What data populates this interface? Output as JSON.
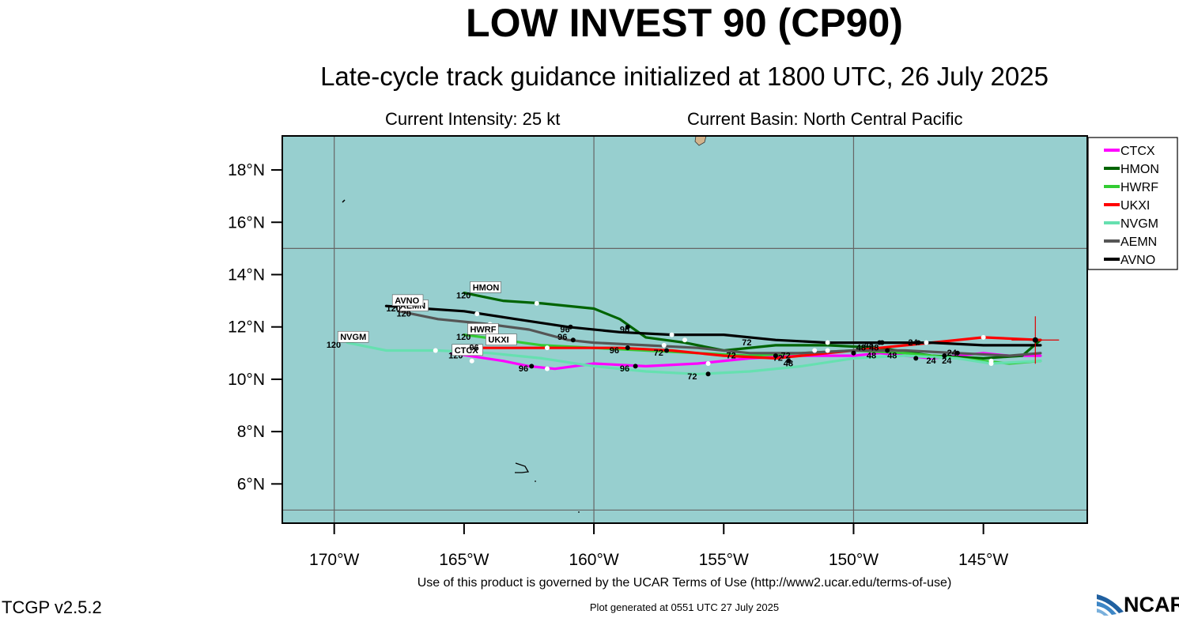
{
  "header": {
    "title": "LOW INVEST 90 (CP90)",
    "subtitle": "Late-cycle track guidance initialized at 1800 UTC, 26 July 2025",
    "intensity": "Current Intensity: 25 kt",
    "basin": "Current Basin: North Central Pacific"
  },
  "footer": {
    "terms": "Use of this product is governed by the UCAR Terms of Use (http://www2.ucar.edu/terms-of-use)",
    "generated": "Plot generated at 0551 UTC   27 July 2025",
    "version": "TCGP v2.5.2",
    "logo": "NCAR"
  },
  "chart_data": {
    "type": "line",
    "xlim": [
      -172,
      -141
    ],
    "ylim": [
      4.5,
      19.3
    ],
    "grid_lon": [
      -170,
      -160,
      -150
    ],
    "grid_lat": [
      15,
      5
    ],
    "x_ticks": [
      -170,
      -165,
      -160,
      -155,
      -150,
      -145
    ],
    "x_tick_labels": [
      "170°W",
      "165°W",
      "160°W",
      "155°W",
      "150°W",
      "145°W"
    ],
    "y_ticks": [
      6,
      8,
      10,
      12,
      14,
      16,
      18
    ],
    "y_tick_labels": [
      "6°N",
      "8°N",
      "10°N",
      "12°N",
      "14°N",
      "16°N",
      "18°N"
    ],
    "legend_position": "right",
    "current_position": [
      -143,
      11.5
    ],
    "series": [
      {
        "name": "CTCX",
        "color": "#ff00ff",
        "track": [
          [
            -142.8,
            10.9
          ],
          [
            -144,
            10.9
          ],
          [
            -145,
            11
          ],
          [
            -146,
            10.9
          ],
          [
            -147,
            10.8
          ],
          [
            -148,
            10.9
          ],
          [
            -149,
            11
          ],
          [
            -150,
            10.9
          ],
          [
            -152,
            10.9
          ],
          [
            -154,
            10.8
          ],
          [
            -156,
            10.6
          ],
          [
            -158,
            10.5
          ],
          [
            -160,
            10.6
          ],
          [
            -161.5,
            10.4
          ],
          [
            -162.5,
            10.5
          ],
          [
            -163.5,
            10.7
          ],
          [
            -165.5,
            11
          ]
        ],
        "white_dots": [
          [
            -144.7,
            10.7
          ],
          [
            -155.6,
            10.6
          ],
          [
            -161.8,
            10.4
          ],
          [
            -164.7,
            10.7
          ]
        ],
        "black_dots": [
          [
            -147.6,
            10.8
          ],
          [
            -153,
            10.9
          ],
          [
            -158.4,
            10.5
          ],
          [
            -162.4,
            10.5
          ]
        ],
        "labels": [
          {
            "text": "96",
            "lon": -162.9,
            "lat": 10.3
          }
        ],
        "end_label": {
          "text": "CTCX",
          "lon": -165.4,
          "lat": 11
        },
        "end_hour": {
          "text": "120",
          "lon": -165.6,
          "lat": 10.8
        }
      },
      {
        "name": "HMON",
        "color": "#006400",
        "track": [
          [
            -142.8,
            11.5
          ],
          [
            -143.5,
            10.9
          ],
          [
            -145,
            10.8
          ],
          [
            -147,
            10.9
          ],
          [
            -149,
            11.2
          ],
          [
            -151,
            11.3
          ],
          [
            -153,
            11.3
          ],
          [
            -155,
            11.1
          ],
          [
            -156.5,
            11.4
          ],
          [
            -158,
            11.6
          ],
          [
            -159,
            12.3
          ],
          [
            -160,
            12.7
          ],
          [
            -162,
            12.9
          ],
          [
            -163.5,
            13
          ],
          [
            -165,
            13.3
          ]
        ],
        "white_dots": [
          [
            -162.2,
            12.9
          ],
          [
            -156.5,
            11.5
          ]
        ],
        "black_dots": [
          [
            -149,
            11.4
          ],
          [
            -146,
            11
          ]
        ],
        "labels": [],
        "end_label": {
          "text": "HMON",
          "lon": -164.7,
          "lat": 13.4
        },
        "end_hour": {
          "text": "120",
          "lon": -165.3,
          "lat": 13.1
        }
      },
      {
        "name": "HWRF",
        "color": "#33cc33",
        "track": [
          [
            -142.8,
            10.7
          ],
          [
            -144,
            10.6
          ],
          [
            -146,
            10.8
          ],
          [
            -148,
            11
          ],
          [
            -150,
            11.1
          ],
          [
            -152,
            11
          ],
          [
            -154,
            10.9
          ],
          [
            -156,
            11
          ],
          [
            -158,
            11.1
          ],
          [
            -160,
            11.2
          ],
          [
            -162,
            11.3
          ],
          [
            -163.5,
            11.5
          ],
          [
            -165,
            11.7
          ]
        ],
        "white_dots": [
          [
            -161.8,
            11.2
          ],
          [
            -151.5,
            11.1
          ]
        ],
        "black_dots": [
          [
            -146.5,
            10.9
          ]
        ],
        "labels": [
          {
            "text": "96",
            "lon": -161.4,
            "lat": 11.5
          }
        ],
        "end_label": {
          "text": "HWRF",
          "lon": -164.8,
          "lat": 11.8
        },
        "end_hour": {
          "text": "120",
          "lon": -165.3,
          "lat": 11.5
        }
      },
      {
        "name": "UKXI",
        "color": "#ff0000",
        "track": [
          [
            -142.8,
            11.5
          ],
          [
            -145,
            11.6
          ],
          [
            -147,
            11.4
          ],
          [
            -149,
            11.2
          ],
          [
            -151,
            11
          ],
          [
            -153,
            10.8
          ],
          [
            -155,
            10.9
          ],
          [
            -157,
            11.1
          ],
          [
            -159,
            11.2
          ],
          [
            -161,
            11.2
          ],
          [
            -163,
            11.2
          ],
          [
            -164.5,
            11.2
          ]
        ],
        "white_dots": [
          [
            -147.2,
            11.4
          ],
          [
            -145,
            11.6
          ]
        ],
        "black_dots": [
          [
            -147.5,
            11.4
          ],
          [
            -152.5,
            10.7
          ],
          [
            -157.2,
            11.1
          ],
          [
            -158.7,
            11.2
          ]
        ],
        "labels": [
          {
            "text": "96",
            "lon": -159.4,
            "lat": 11
          },
          {
            "text": "72",
            "lon": -157.7,
            "lat": 10.9
          },
          {
            "text": "24",
            "lon": -147.9,
            "lat": 11.3
          }
        ],
        "end_label": {
          "text": "UKXI",
          "lon": -164.1,
          "lat": 11.4
        },
        "end_hour": {
          "text": "96",
          "lon": -164.8,
          "lat": 11.1
        }
      },
      {
        "name": "NVGM",
        "color": "#66e0b0",
        "track": [
          [
            -142.8,
            10.7
          ],
          [
            -144.7,
            10.6
          ],
          [
            -146,
            10.8
          ],
          [
            -148,
            10.9
          ],
          [
            -150,
            10.8
          ],
          [
            -152,
            10.5
          ],
          [
            -154,
            10.3
          ],
          [
            -156,
            10.2
          ],
          [
            -158,
            10.3
          ],
          [
            -160,
            10.5
          ],
          [
            -162,
            10.8
          ],
          [
            -164,
            11
          ],
          [
            -166,
            11.1
          ],
          [
            -168,
            11.1
          ],
          [
            -169.5,
            11.4
          ]
        ],
        "white_dots": [
          [
            -166.1,
            11.1
          ],
          [
            -144.7,
            10.6
          ]
        ],
        "black_dots": [
          [
            -155.6,
            10.2
          ]
        ],
        "labels": [
          {
            "text": "72",
            "lon": -156.4,
            "lat": 10
          },
          {
            "text": "96",
            "lon": -159,
            "lat": 10.3
          },
          {
            "text": "48",
            "lon": -149.5,
            "lat": 10.8
          }
        ],
        "end_label": {
          "text": "NVGM",
          "lon": -169.8,
          "lat": 11.5
        },
        "end_hour": {
          "text": "120",
          "lon": -170.3,
          "lat": 11.2
        }
      },
      {
        "name": "AEMN",
        "color": "#555555",
        "track": [
          [
            -142.8,
            11
          ],
          [
            -144,
            10.9
          ],
          [
            -146,
            11
          ],
          [
            -148,
            11.1
          ],
          [
            -150,
            11.1
          ],
          [
            -152,
            11
          ],
          [
            -154,
            11
          ],
          [
            -156,
            11.2
          ],
          [
            -158,
            11.3
          ],
          [
            -160,
            11.4
          ],
          [
            -161,
            11.5
          ],
          [
            -162.5,
            11.9
          ],
          [
            -164,
            12.1
          ],
          [
            -166,
            12.3
          ],
          [
            -167.5,
            12.6
          ]
        ],
        "white_dots": [
          [
            -164,
            12.1
          ],
          [
            -157.3,
            11.3
          ],
          [
            -151,
            11.1
          ]
        ],
        "black_dots": [
          [
            -148.7,
            11.1
          ],
          [
            -150,
            11
          ],
          [
            -160.8,
            11.5
          ]
        ],
        "labels": [
          {
            "text": "48",
            "lon": -149.9,
            "lat": 11.1
          }
        ],
        "end_label": {
          "text": "AEMN",
          "lon": -167.5,
          "lat": 12.7
        },
        "end_hour": {
          "text": "120",
          "lon": -167.6,
          "lat": 12.4
        }
      },
      {
        "name": "AVNO",
        "color": "#000000",
        "track": [
          [
            -142.8,
            11.3
          ],
          [
            -145,
            11.3
          ],
          [
            -147,
            11.4
          ],
          [
            -149,
            11.4
          ],
          [
            -151,
            11.4
          ],
          [
            -153,
            11.5
          ],
          [
            -155,
            11.7
          ],
          [
            -157,
            11.7
          ],
          [
            -159,
            11.8
          ],
          [
            -161,
            12
          ],
          [
            -163,
            12.3
          ],
          [
            -165,
            12.6
          ],
          [
            -168,
            12.8
          ]
        ],
        "white_dots": [
          [
            -164.5,
            12.5
          ],
          [
            -157,
            11.7
          ],
          [
            -151,
            11.4
          ]
        ],
        "black_dots": [
          [
            -160.9,
            12
          ],
          [
            -158.7,
            12
          ],
          [
            -148.9,
            11.4
          ]
        ],
        "labels": [
          {
            "text": "96",
            "lon": -161.3,
            "lat": 11.8
          },
          {
            "text": "96",
            "lon": -159,
            "lat": 11.8
          }
        ],
        "end_label": {
          "text": "AVNO",
          "lon": -167.7,
          "lat": 12.9
        },
        "end_hour": {
          "text": "120",
          "lon": -168,
          "lat": 12.6
        }
      }
    ],
    "extra_labels": [
      {
        "text": "72",
        "lon": -154.9,
        "lat": 10.8
      },
      {
        "text": "72",
        "lon": -154.3,
        "lat": 11.3
      },
      {
        "text": "72",
        "lon": -153.1,
        "lat": 10.7
      },
      {
        "text": "48",
        "lon": -152.7,
        "lat": 10.5
      },
      {
        "text": "48",
        "lon": -148.7,
        "lat": 10.8
      },
      {
        "text": "48",
        "lon": -149.4,
        "lat": 11.1
      },
      {
        "text": "24",
        "lon": -147.2,
        "lat": 10.6
      },
      {
        "text": "24",
        "lon": -146.6,
        "lat": 10.6
      },
      {
        "text": "24",
        "lon": -146.4,
        "lat": 10.9
      },
      {
        "text": "72",
        "lon": -152.8,
        "lat": 10.8
      },
      {
        "text": "48",
        "lon": -149.6,
        "lat": 11.2
      }
    ]
  }
}
